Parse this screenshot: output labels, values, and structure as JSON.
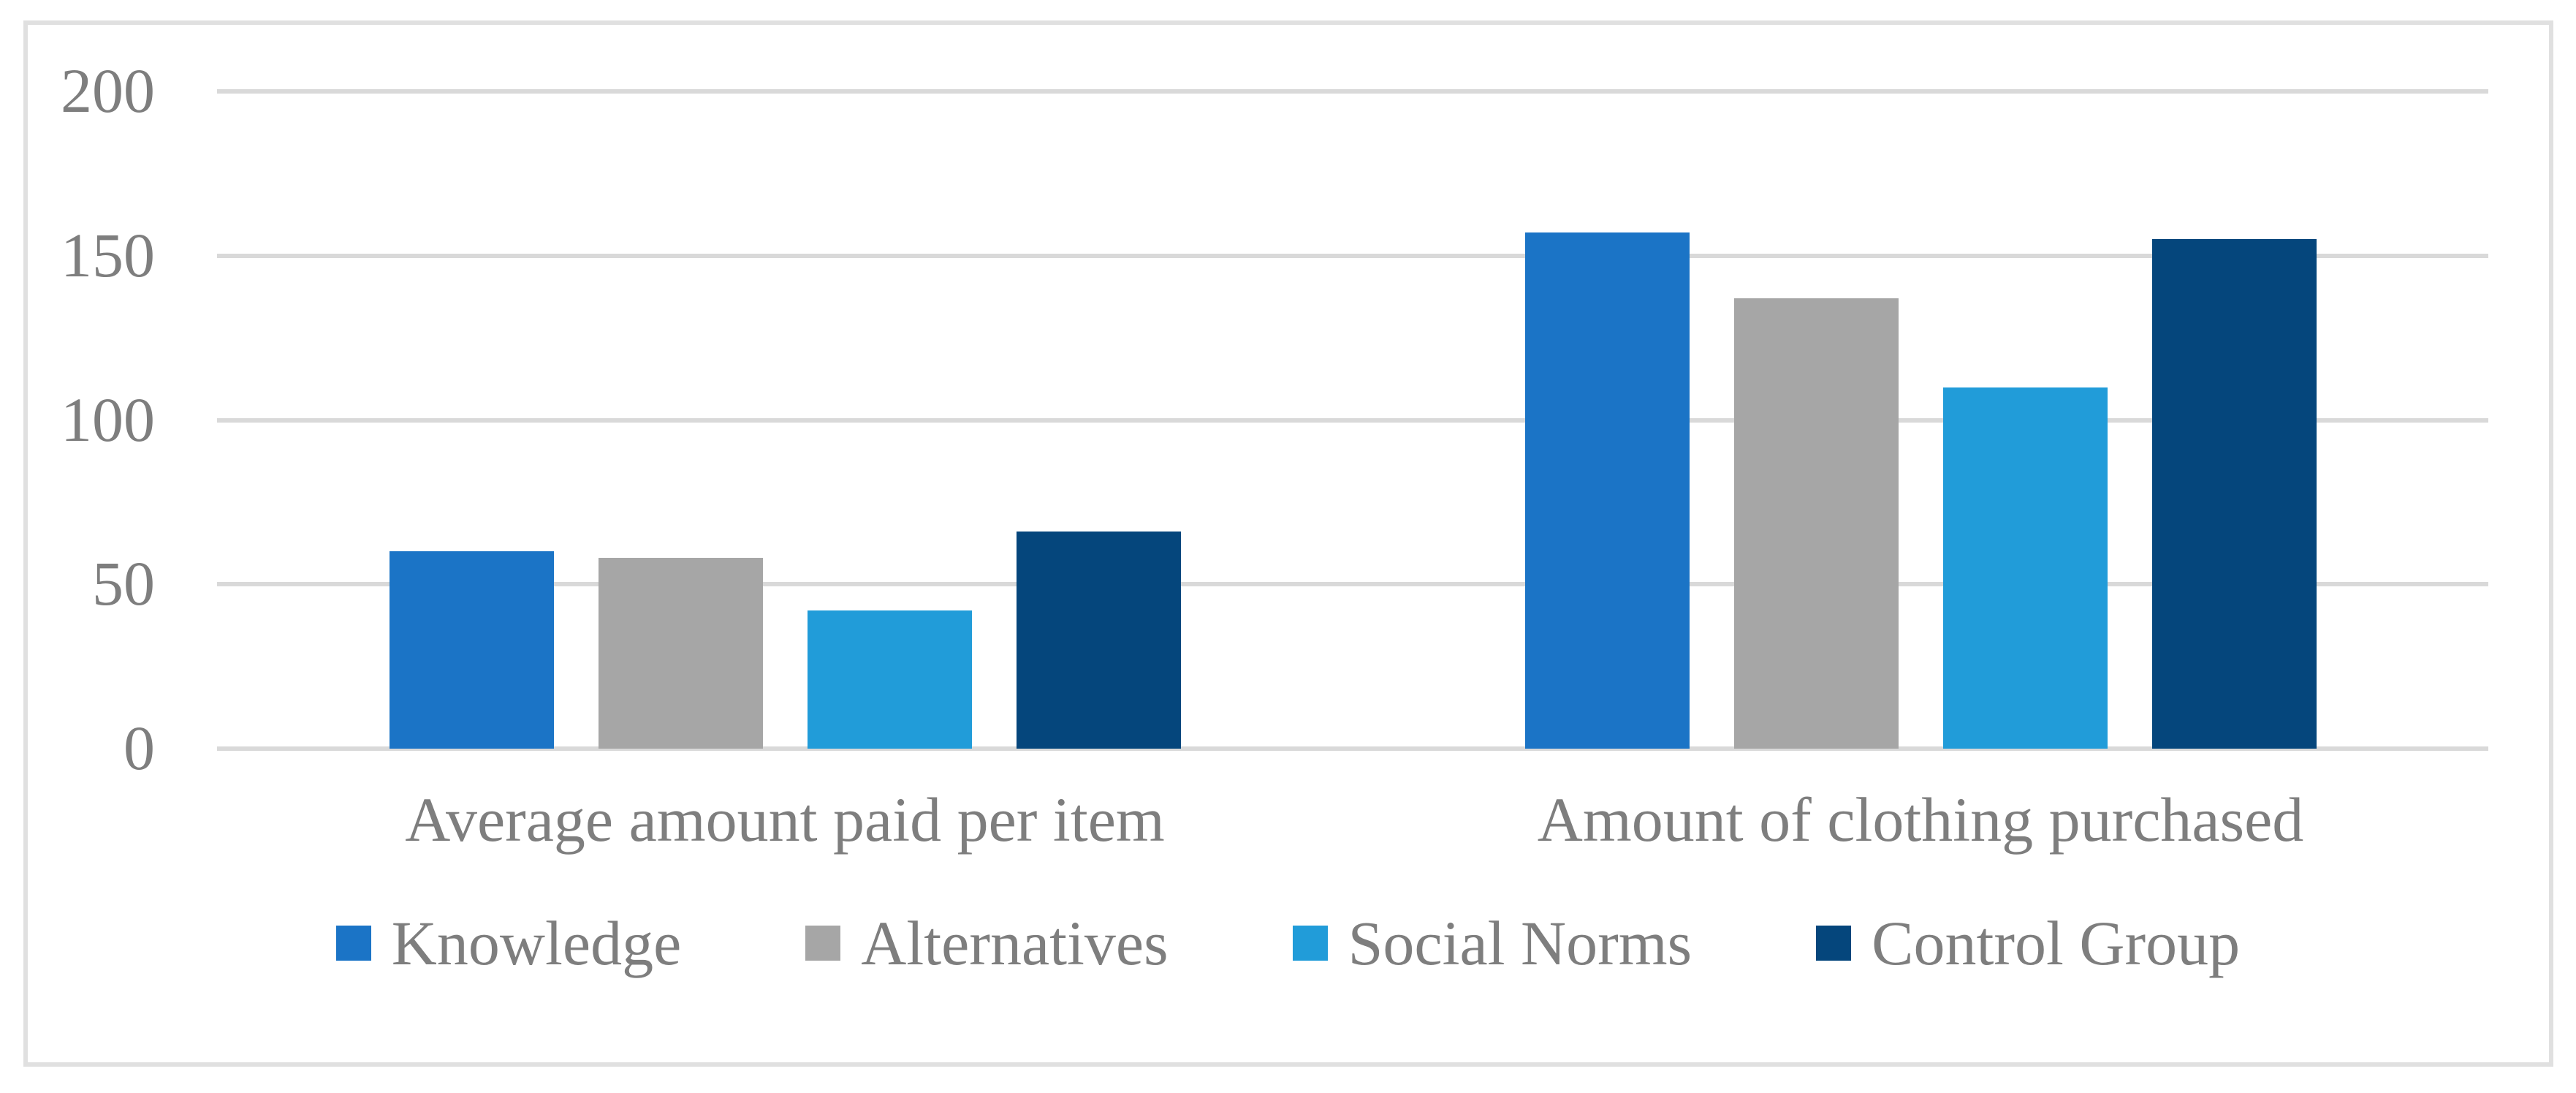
{
  "figure": {
    "background": "#ffffff",
    "frame_border_color": "#e0e0e0"
  },
  "chart_data": {
    "type": "bar",
    "title": "",
    "xlabel": "",
    "ylabel": "",
    "categories": [
      "Average amount paid per item",
      "Amount of clothing purchased"
    ],
    "series": [
      {
        "name": "Knowledge",
        "color": "#1b74c6",
        "values": [
          60,
          157
        ]
      },
      {
        "name": "Alternatives",
        "color": "#a6a6a6",
        "values": [
          58,
          137
        ]
      },
      {
        "name": "Social Norms",
        "color": "#219cd9",
        "values": [
          42,
          110
        ]
      },
      {
        "name": "Control Group",
        "color": "#05467c",
        "values": [
          66,
          155
        ]
      }
    ],
    "ylim": [
      0,
      200
    ],
    "yticks": [
      0,
      50,
      100,
      150,
      200
    ],
    "grid": true,
    "gridline_color": "#d9d9d9",
    "axis_text_color": "#7e7e7e",
    "legend_position": "bottom"
  }
}
